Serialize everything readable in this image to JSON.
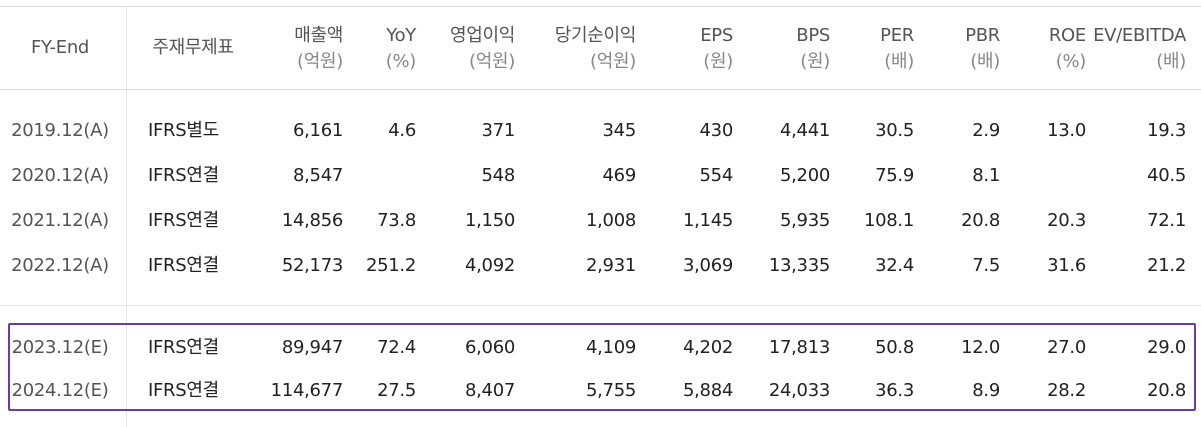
{
  "header": {
    "fy_end": "FY-End",
    "basis": "주재무제표",
    "columns": [
      {
        "label": "매출액",
        "unit": "(억원)"
      },
      {
        "label": "YoY",
        "unit": "(%)"
      },
      {
        "label": "영업이익",
        "unit": "(억원)"
      },
      {
        "label": "당기순이익",
        "unit": "(억원)"
      },
      {
        "label": "EPS",
        "unit": "(원)"
      },
      {
        "label": "BPS",
        "unit": "(원)"
      },
      {
        "label": "PER",
        "unit": "(배)"
      },
      {
        "label": "PBR",
        "unit": "(배)"
      },
      {
        "label": "ROE",
        "unit": "(%)"
      },
      {
        "label": "EV/EBITDA",
        "unit": "(배)"
      }
    ]
  },
  "actual_rows": [
    {
      "fy": "2019.12(A)",
      "basis": "IFRS별도",
      "values": [
        "6,161",
        "4.6",
        "371",
        "345",
        "430",
        "4,441",
        "30.5",
        "2.9",
        "13.0",
        "19.3"
      ]
    },
    {
      "fy": "2020.12(A)",
      "basis": "IFRS연결",
      "values": [
        "8,547",
        "",
        "548",
        "469",
        "554",
        "5,200",
        "75.9",
        "8.1",
        "",
        "40.5"
      ]
    },
    {
      "fy": "2021.12(A)",
      "basis": "IFRS연결",
      "values": [
        "14,856",
        "73.8",
        "1,150",
        "1,008",
        "1,145",
        "5,935",
        "108.1",
        "20.8",
        "20.3",
        "72.1"
      ]
    },
    {
      "fy": "2022.12(A)",
      "basis": "IFRS연결",
      "values": [
        "52,173",
        "251.2",
        "4,092",
        "2,931",
        "3,069",
        "13,335",
        "32.4",
        "7.5",
        "31.6",
        "21.2"
      ]
    }
  ],
  "estimate_rows": [
    {
      "fy": "2023.12(E)",
      "basis": "IFRS연결",
      "values": [
        "89,947",
        "72.4",
        "6,060",
        "4,109",
        "4,202",
        "17,813",
        "50.8",
        "12.0",
        "27.0",
        "29.0"
      ]
    },
    {
      "fy": "2024.12(E)",
      "basis": "IFRS연결",
      "values": [
        "114,677",
        "27.5",
        "8,407",
        "5,755",
        "5,884",
        "24,033",
        "36.3",
        "8.9",
        "28.2",
        "20.8"
      ]
    }
  ],
  "colors": {
    "highlight_border": "#6a3aa8",
    "grid": "#dcdcdc"
  }
}
